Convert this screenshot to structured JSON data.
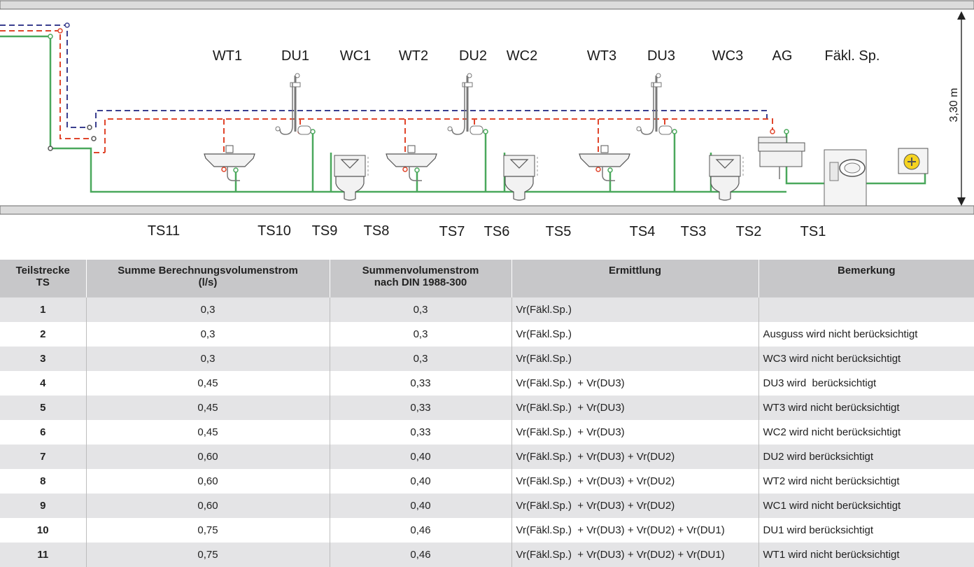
{
  "diagram": {
    "height_label": "3,30 m",
    "fixtures": [
      "WT1",
      "DU1",
      "WC1",
      "WT2",
      "DU2",
      "WC2",
      "WT3",
      "DU3",
      "WC3",
      "AG",
      "Fäkl. Sp."
    ],
    "sections": [
      "TS11",
      "TS10",
      "TS9",
      "TS8",
      "TS7",
      "TS6",
      "TS5",
      "TS4",
      "TS3",
      "TS2",
      "TS1"
    ],
    "colors": {
      "cold_water": "#4aa85c",
      "hot_water": "#e0452b",
      "circulation": "#3a3f8f",
      "slab": "#dcdcdc"
    }
  },
  "table": {
    "headers": [
      {
        "line1": "Teilstrecke",
        "line2": "TS"
      },
      {
        "line1": "Summe Berechnungsvolumenstrom",
        "line2": "(l/s)"
      },
      {
        "line1": "Summenvolumenstrom",
        "line2": "nach DIN 1988-300"
      },
      {
        "line1": "Ermittlung",
        "line2": ""
      },
      {
        "line1": "Bemerkung",
        "line2": ""
      }
    ],
    "rows": [
      [
        "1",
        "0,3",
        "0,3",
        "Vr(Fäkl.Sp.)",
        ""
      ],
      [
        "2",
        "0,3",
        "0,3",
        "Vr(Fäkl.Sp.)",
        "Ausguss wird nicht berücksichtigt"
      ],
      [
        "3",
        "0,3",
        "0,3",
        "Vr(Fäkl.Sp.)",
        "WC3 wird nicht berücksichtigt"
      ],
      [
        "4",
        "0,45",
        "0,33",
        "Vr(Fäkl.Sp.)  + Vr(DU3)",
        "DU3 wird  berücksichtigt"
      ],
      [
        "5",
        "0,45",
        "0,33",
        "Vr(Fäkl.Sp.)  + Vr(DU3)",
        "WT3 wird nicht berücksichtigt"
      ],
      [
        "6",
        "0,45",
        "0,33",
        "Vr(Fäkl.Sp.)  + Vr(DU3)",
        "WC2 wird nicht berücksichtigt"
      ],
      [
        "7",
        "0,60",
        "0,40",
        "Vr(Fäkl.Sp.)  + Vr(DU3) + Vr(DU2)",
        "DU2 wird berücksichtigt"
      ],
      [
        "8",
        "0,60",
        "0,40",
        "Vr(Fäkl.Sp.)  + Vr(DU3) + Vr(DU2)",
        "WT2 wird nicht berücksichtigt"
      ],
      [
        "9",
        "0,60",
        "0,40",
        "Vr(Fäkl.Sp.)  + Vr(DU3) + Vr(DU2)",
        "WC1 wird nicht berücksichtigt"
      ],
      [
        "10",
        "0,75",
        "0,46",
        "Vr(Fäkl.Sp.)  + Vr(DU3) + Vr(DU2) + Vr(DU1)",
        "DU1 wird berücksichtigt"
      ],
      [
        "11",
        "0,75",
        "0,46",
        "Vr(Fäkl.Sp.)  + Vr(DU3) + Vr(DU2) + Vr(DU1)",
        "WT1 wird nicht berücksichtigt"
      ]
    ]
  }
}
